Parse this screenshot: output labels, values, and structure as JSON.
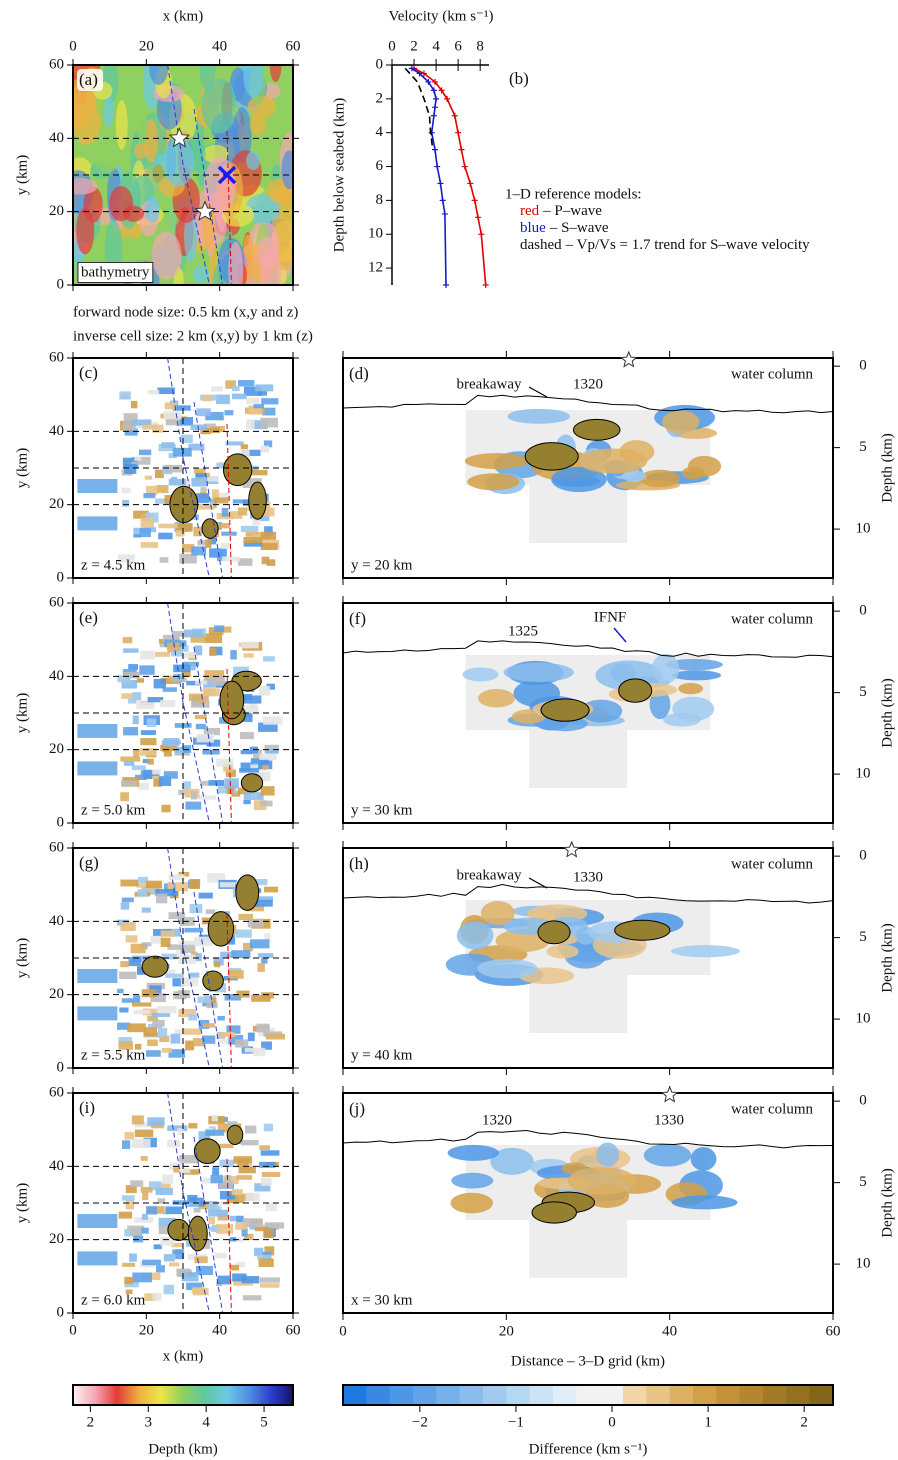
{
  "notes": [
    "forward node size: 0.5 km (x,y and z)",
    "inverse cell size: 2 km (x,y) by 1 km (z)"
  ],
  "chart_data": [
    {
      "type": "map",
      "label": "(a)",
      "xlabel": "x (km)",
      "ylabel": "y (km)",
      "xlim": [
        0,
        60
      ],
      "ylim": [
        0,
        60
      ],
      "xticks": [
        0,
        20,
        40,
        60
      ],
      "yticks": [
        0,
        20,
        40,
        60
      ],
      "annotation": "bathymetry",
      "y_profiles": [
        20,
        30,
        40
      ],
      "stars": {
        "x": [
          29,
          36
        ],
        "y": [
          40,
          20
        ]
      },
      "cross": {
        "x": [
          42
        ],
        "y": [
          30
        ],
        "color": "#1a1aff"
      }
    },
    {
      "type": "line",
      "label": "(b)",
      "xlabel": "Velocity (km s⁻¹)",
      "ylabel": "Depth below seabed (km)",
      "xlim": [
        0,
        8.8
      ],
      "ylim": [
        0,
        13
      ],
      "xticks": [
        0,
        2,
        4,
        6,
        8
      ],
      "yticks": [
        0,
        2,
        4,
        6,
        8,
        10,
        12
      ],
      "legend_title": "1–D reference models:",
      "series": [
        {
          "key": "red",
          "name": "– P–wave",
          "color": "#e00000",
          "depth": [
            0.2,
            0.5,
            1,
            1.5,
            2,
            3,
            4,
            5,
            6,
            7,
            8,
            9,
            10,
            13
          ],
          "velocity": [
            2.0,
            2.9,
            3.9,
            4.5,
            5.0,
            5.7,
            6.0,
            6.3,
            6.6,
            7.1,
            7.5,
            7.8,
            8.1,
            8.5
          ]
        },
        {
          "key": "blue",
          "name": "– S–wave",
          "color": "#1a1acc",
          "depth": [
            0.2,
            0.5,
            1,
            1.5,
            2,
            2.5,
            3,
            4,
            5,
            6,
            7,
            8,
            8.8,
            13
          ],
          "velocity": [
            1.8,
            2.5,
            3.3,
            3.8,
            4.0,
            3.9,
            3.8,
            3.6,
            3.9,
            4.1,
            4.4,
            4.6,
            4.8,
            4.9
          ]
        },
        {
          "key": "dashed",
          "name": "– Vp/Vs = 1.7 trend for S–wave velocity",
          "color": "#000000",
          "dashed": true,
          "depth": [
            0.2,
            1,
            2,
            3,
            4,
            5
          ],
          "velocity": [
            1.2,
            2.3,
            2.9,
            3.4,
            3.5,
            3.7
          ]
        }
      ]
    },
    {
      "type": "map",
      "label": "(c)",
      "ylabel": "y (km)",
      "xlim": [
        0,
        60
      ],
      "ylim": [
        0,
        60
      ],
      "xticks": [
        0,
        20,
        40,
        60
      ],
      "show_xtick_labels": false,
      "yticks": [
        0,
        20,
        40,
        60
      ],
      "annotation": "z = 4.5 km",
      "y_profiles": [
        20,
        30,
        40
      ],
      "x_profiles": [
        30
      ]
    },
    {
      "type": "section",
      "label": "(d)",
      "y2label": "Depth (km)",
      "xlim": [
        0,
        60
      ],
      "y2lim": [
        -0.5,
        13
      ],
      "xticks": [
        0,
        20,
        40,
        60
      ],
      "y2ticks": [
        0,
        5,
        10
      ],
      "annotation": "water column",
      "profile": "y = 20 km",
      "labels": [
        "breakaway",
        "1320"
      ],
      "star_x": [
        35
      ]
    },
    {
      "type": "map",
      "label": "(e)",
      "ylabel": "y (km)",
      "xlim": [
        0,
        60
      ],
      "ylim": [
        0,
        60
      ],
      "xticks": [
        0,
        20,
        40,
        60
      ],
      "show_xtick_labels": false,
      "yticks": [
        0,
        20,
        40,
        60
      ],
      "annotation": "z = 5.0 km",
      "y_profiles": [
        20,
        30,
        40
      ],
      "x_profiles": [
        30
      ]
    },
    {
      "type": "section",
      "label": "(f)",
      "y2label": "Depth (km)",
      "xlim": [
        0,
        60
      ],
      "y2lim": [
        -0.5,
        13
      ],
      "xticks": [
        0,
        20,
        40,
        60
      ],
      "y2ticks": [
        0,
        5,
        10
      ],
      "annotation": "water column",
      "profile": "y = 30 km",
      "labels": [
        "1325",
        "IFNF"
      ],
      "label_colors": [
        "#111111",
        "#1a1acc"
      ],
      "star_x": []
    },
    {
      "type": "map",
      "label": "(g)",
      "ylabel": "y (km)",
      "xlim": [
        0,
        60
      ],
      "ylim": [
        0,
        60
      ],
      "xticks": [
        0,
        20,
        40,
        60
      ],
      "show_xtick_labels": false,
      "yticks": [
        0,
        20,
        40,
        60
      ],
      "annotation": "z = 5.5 km",
      "y_profiles": [
        20,
        30,
        40
      ],
      "x_profiles": [
        30
      ]
    },
    {
      "type": "section",
      "label": "(h)",
      "y2label": "Depth (km)",
      "xlim": [
        0,
        60
      ],
      "y2lim": [
        -0.5,
        13
      ],
      "xticks": [
        0,
        20,
        40,
        60
      ],
      "y2ticks": [
        0,
        5,
        10
      ],
      "annotation": "water column",
      "profile": "y = 40 km",
      "labels": [
        "breakaway",
        "1330"
      ],
      "star_x": [
        28
      ]
    },
    {
      "type": "map",
      "label": "(i)",
      "xlabel": "x (km)",
      "ylabel": "y (km)",
      "xlim": [
        0,
        60
      ],
      "ylim": [
        0,
        60
      ],
      "xticks": [
        0,
        20,
        40,
        60
      ],
      "yticks": [
        0,
        20,
        40,
        60
      ],
      "annotation": "z = 6.0 km",
      "y_profiles": [
        20,
        30,
        40
      ],
      "x_profiles": [
        30
      ]
    },
    {
      "type": "section",
      "label": "(j)",
      "xlabel": "Distance – 3–D grid (km)",
      "y2label": "Depth (km)",
      "xlim": [
        0,
        60
      ],
      "y2lim": [
        -0.5,
        13
      ],
      "xticks": [
        0,
        20,
        40,
        60
      ],
      "y2ticks": [
        0,
        5,
        10
      ],
      "annotation": "water column",
      "profile": "x = 30 km",
      "labels": [
        "1320",
        "1330"
      ],
      "star_x": [
        40
      ]
    },
    {
      "type": "colorbar",
      "xlabel": "Depth (km)",
      "xlim": [
        1.7,
        5.5
      ],
      "xticks": [
        2,
        3,
        4,
        5
      ],
      "colors": [
        "#fdf2f2",
        "#f5a6b4",
        "#e43a36",
        "#f0b040",
        "#eee448",
        "#8fd060",
        "#5ec8a0",
        "#6cc8e8",
        "#4f8fe0",
        "#2a3fd0",
        "#121268"
      ]
    },
    {
      "type": "colorbar",
      "xlabel": "Difference (km s⁻¹)",
      "xlim": [
        -2.8,
        2.3
      ],
      "discrete": true,
      "xticks": [
        {
          "value": -2,
          "label": "−2"
        },
        {
          "value": -1,
          "label": "−1"
        },
        0,
        1,
        2
      ],
      "colors": [
        "#1f78e0",
        "#3a88e4",
        "#4e96e6",
        "#62a3e8",
        "#76b0ea",
        "#8bbdec",
        "#a0caef",
        "#b6d7f2",
        "#cbe3f5",
        "#e2eef7",
        "#f2f2f2",
        "#f2f2f2",
        "#f2d6a8",
        "#e9c388",
        "#deb064",
        "#d2a048",
        "#c4923a",
        "#b48630",
        "#a47a26",
        "#947020",
        "#84661a"
      ]
    }
  ]
}
